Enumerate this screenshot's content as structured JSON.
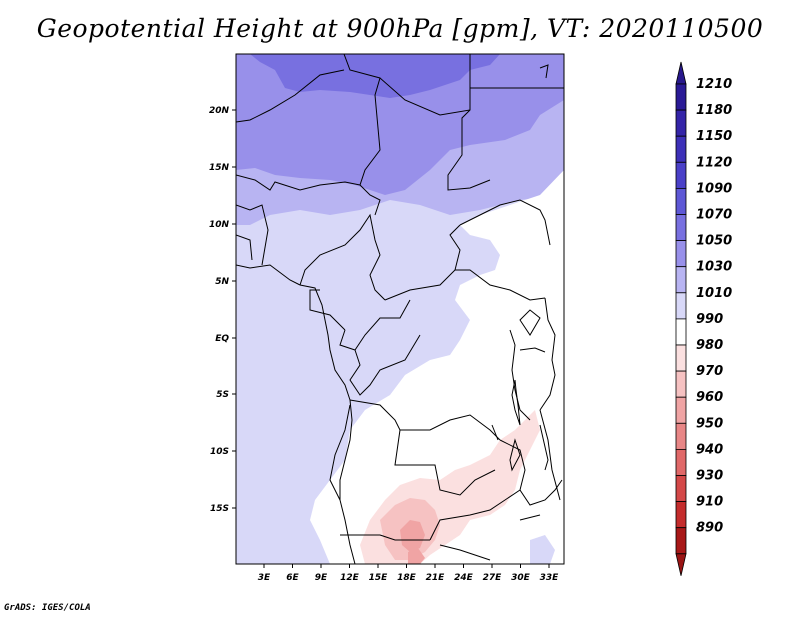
{
  "title": "Geopotential Height at 900hPa [gpm], VT: 2020110500",
  "credit": "GrADS: IGES/COLA",
  "map": {
    "lat_labels": [
      "20N",
      "15N",
      "10N",
      "5N",
      "EQ",
      "5S",
      "10S",
      "15S"
    ],
    "lon_labels": [
      "3E",
      "6E",
      "9E",
      "12E",
      "15E",
      "18E",
      "21E",
      "24E",
      "27E",
      "30E",
      "33E"
    ]
  },
  "colorbar": {
    "levels": [
      {
        "label": "1210",
        "color": "#2a1a96"
      },
      {
        "label": "1180",
        "color": "#3424a8"
      },
      {
        "label": "1150",
        "color": "#3d30b8"
      },
      {
        "label": "1120",
        "color": "#4a40c8"
      },
      {
        "label": "1090",
        "color": "#5e58d6"
      },
      {
        "label": "1070",
        "color": "#7870e0"
      },
      {
        "label": "1050",
        "color": "#9890ea"
      },
      {
        "label": "1030",
        "color": "#b8b4f2"
      },
      {
        "label": "1010",
        "color": "#d8d8f8"
      },
      {
        "label": "990",
        "color": "#ffffff"
      },
      {
        "label": "980",
        "color": "#fbe0e0"
      },
      {
        "label": "970",
        "color": "#f6c2c2"
      },
      {
        "label": "960",
        "color": "#f0a4a4"
      },
      {
        "label": "950",
        "color": "#e88686"
      },
      {
        "label": "940",
        "color": "#e06868"
      },
      {
        "label": "930",
        "color": "#d44848"
      },
      {
        "label": "910",
        "color": "#c42c2c"
      },
      {
        "label": "890",
        "color": "#a81818"
      }
    ],
    "top_color": "#28188c",
    "bottom_color": "#9a1414"
  }
}
